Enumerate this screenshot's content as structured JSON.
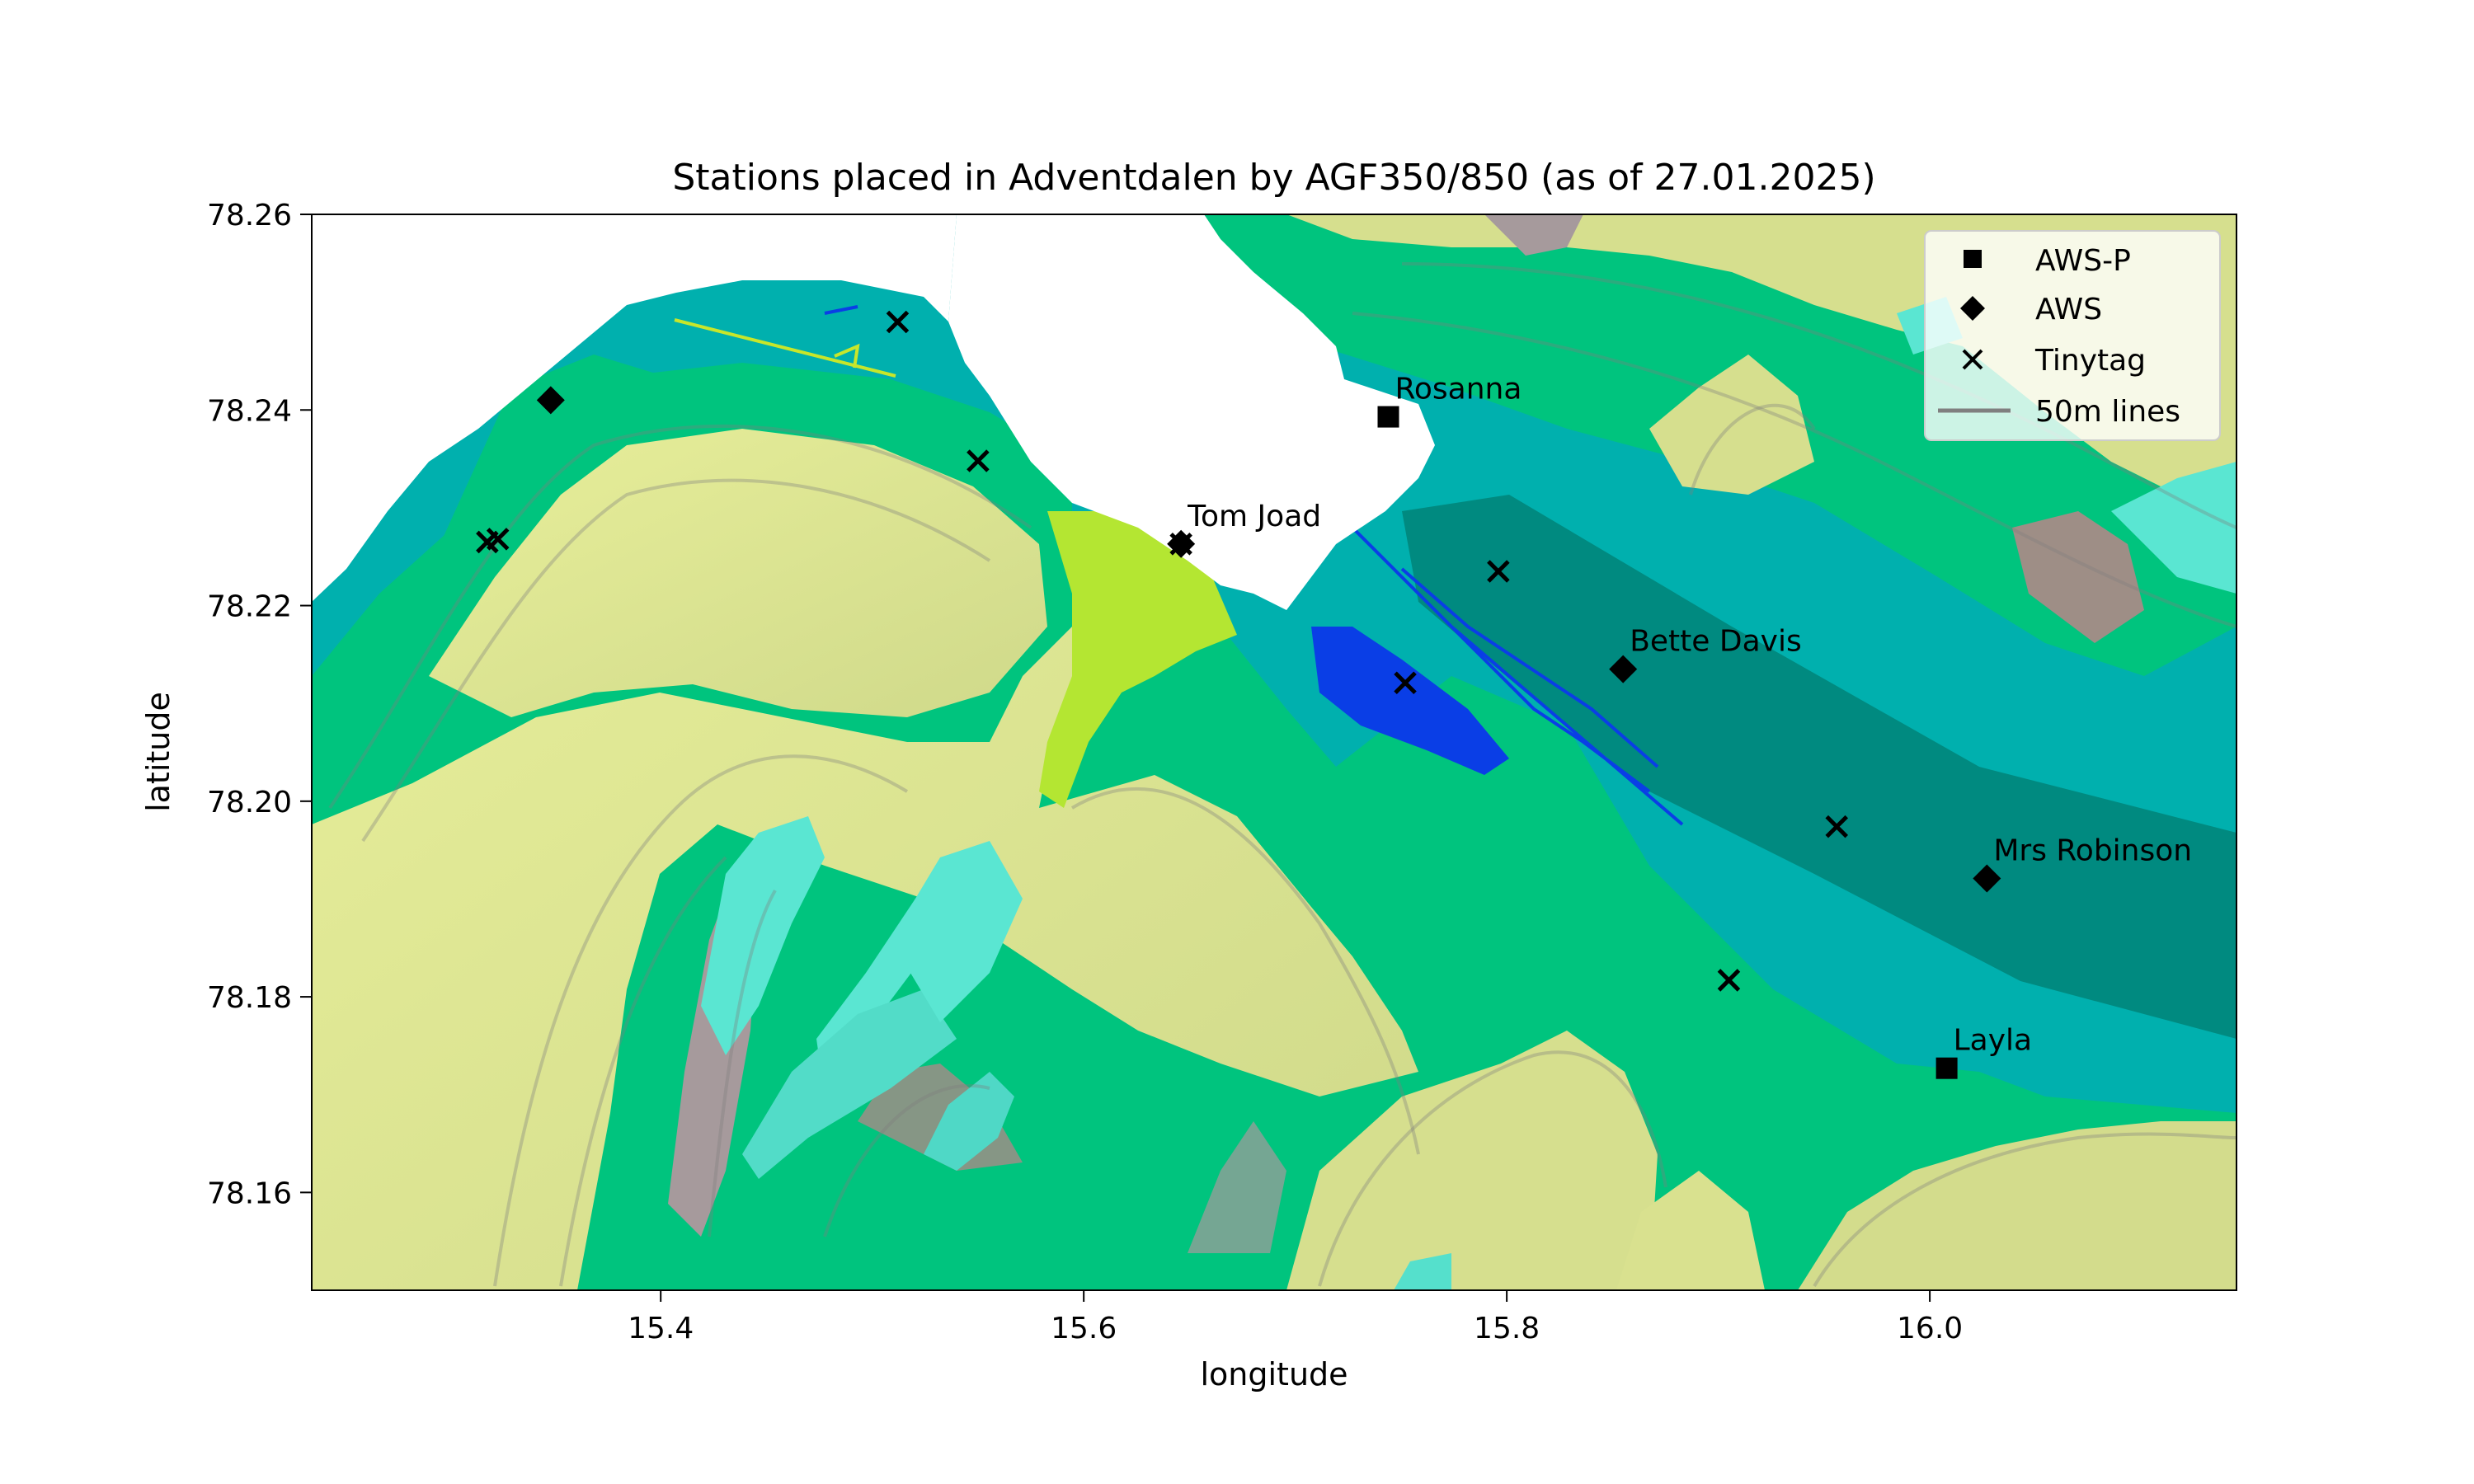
{
  "chart_data": {
    "type": "scatter",
    "title": "Stations placed in Adventdalen by AGF350/850 (as of 27.01.2025)",
    "xlabel": "longitude",
    "ylabel": "latitude",
    "xlim": [
      15.235,
      16.145
    ],
    "ylim": [
      78.15,
      78.26
    ],
    "xticks": [
      "15.4",
      "15.6",
      "15.8",
      "16.0"
    ],
    "xtick_values": [
      15.4,
      15.6,
      15.8,
      16.0
    ],
    "yticks": [
      "78.16",
      "78.18",
      "78.20",
      "78.22",
      "78.24",
      "78.26"
    ],
    "ytick_values": [
      78.16,
      78.18,
      78.2,
      78.22,
      78.24,
      78.26
    ],
    "grid": false,
    "legend_position": "top-right",
    "legend": [
      {
        "label": "AWS-P",
        "marker": "square"
      },
      {
        "label": "AWS",
        "marker": "diamond"
      },
      {
        "label": "Tinytag",
        "marker": "x"
      },
      {
        "label": "50m lines",
        "marker": "line",
        "color": "#7f7f7f"
      }
    ],
    "series": [
      {
        "name": "AWS-P",
        "marker": "square",
        "color": "#000000",
        "points": [
          {
            "x": 15.744,
            "y": 78.2393,
            "label": "Rosanna"
          },
          {
            "x": 16.008,
            "y": 78.1727,
            "label": "Layla"
          }
        ]
      },
      {
        "name": "AWS",
        "marker": "diamond",
        "color": "#000000",
        "points": [
          {
            "x": 15.348,
            "y": 78.241,
            "label": ""
          },
          {
            "x": 15.646,
            "y": 78.2263,
            "label": "Tom Joad"
          },
          {
            "x": 15.855,
            "y": 78.2135,
            "label": "Bette Davis"
          },
          {
            "x": 16.027,
            "y": 78.1921,
            "label": "Mrs Robinson"
          }
        ]
      },
      {
        "name": "Tinytag",
        "marker": "x",
        "color": "#000000",
        "points": [
          {
            "x": 15.512,
            "y": 78.249
          },
          {
            "x": 15.55,
            "y": 78.2348
          },
          {
            "x": 15.318,
            "y": 78.2265
          },
          {
            "x": 15.323,
            "y": 78.2268
          },
          {
            "x": 15.646,
            "y": 78.2263
          },
          {
            "x": 15.796,
            "y": 78.2235
          },
          {
            "x": 15.752,
            "y": 78.2121
          },
          {
            "x": 15.956,
            "y": 78.1974
          },
          {
            "x": 15.905,
            "y": 78.1817
          }
        ]
      }
    ]
  },
  "colors": {
    "lowland": "#00b4b4",
    "valley_floor": "#008e84",
    "slopes": "#00c77f",
    "hills": "#d9e690",
    "peaks": "#a89d9d",
    "glacier": "#5ae8d4",
    "water": "#0a3ee6",
    "airport": "#b4e632",
    "sea": "#ffffff",
    "contour": "#7f7f7f"
  }
}
